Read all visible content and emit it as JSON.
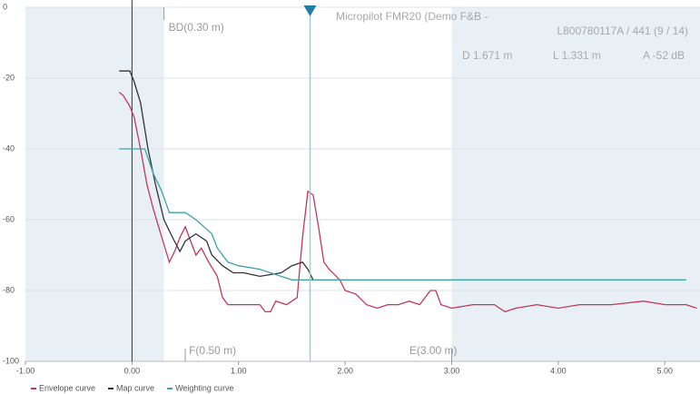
{
  "chart_data": {
    "type": "line",
    "info": {
      "title": "Micropilot FMR20 (Demo F&B -",
      "device": "L800780117A / 441 (9 / 14)",
      "distance": "D 1.671 m",
      "level": "L 1.331 m",
      "amplitude": "A -52 dB"
    },
    "markers": {
      "blocking": {
        "label": "BD(0.30 m)",
        "value": 0.3
      },
      "full": {
        "label": "F(0.50 m)",
        "value": 0.5
      },
      "empty": {
        "label": "E(3.00 m)",
        "value": 3.0
      },
      "cursor": 1.671
    },
    "xlim": [
      -1,
      5.33
    ],
    "ylim": [
      -100,
      0
    ],
    "xticks": [
      {
        "value": -1,
        "label": "-1.00"
      },
      {
        "value": 0,
        "label": "0.00"
      },
      {
        "value": 1,
        "label": "1.00"
      },
      {
        "value": 2,
        "label": "2.00"
      },
      {
        "value": 3,
        "label": "3.00"
      },
      {
        "value": 4,
        "label": "4.00"
      },
      {
        "value": 5,
        "label": "5.00"
      }
    ],
    "yticks": [
      0,
      -20,
      -40,
      -60,
      -80,
      -100
    ],
    "grid": true,
    "series": [
      {
        "name": "Envelope curve",
        "color": "#c0395a",
        "x": [
          -0.12,
          -0.08,
          -0.02,
          0.02,
          0.08,
          0.14,
          0.2,
          0.28,
          0.35,
          0.4,
          0.45,
          0.5,
          0.55,
          0.6,
          0.65,
          0.72,
          0.8,
          0.85,
          0.9,
          1.0,
          1.1,
          1.2,
          1.25,
          1.3,
          1.35,
          1.45,
          1.55,
          1.6,
          1.65,
          1.7,
          1.75,
          1.8,
          1.85,
          1.95,
          2.0,
          2.1,
          2.2,
          2.3,
          2.4,
          2.5,
          2.6,
          2.7,
          2.8,
          2.85,
          2.9,
          3.0,
          3.2,
          3.4,
          3.5,
          3.6,
          3.8,
          4.0,
          4.2,
          4.5,
          4.8,
          5.0,
          5.2,
          5.3
        ],
        "values": [
          -24,
          -25,
          -28,
          -31,
          -40,
          -50,
          -57,
          -65,
          -72,
          -69,
          -65,
          -62,
          -66,
          -70,
          -68,
          -72,
          -76,
          -82,
          -84,
          -84,
          -84,
          -84,
          -86,
          -86,
          -83,
          -84,
          -82,
          -65,
          -52,
          -53,
          -62,
          -72,
          -74,
          -77,
          -80,
          -81,
          -84,
          -85,
          -84,
          -84,
          -83,
          -84,
          -80,
          -80,
          -84,
          -85,
          -84,
          -84,
          -86,
          -85,
          -84,
          -85,
          -84,
          -84,
          -83,
          -84,
          -84,
          -85
        ]
      },
      {
        "name": "Map curve",
        "color": "#333333",
        "x": [
          -0.12,
          -0.02,
          0.02,
          0.08,
          0.15,
          0.22,
          0.3,
          0.38,
          0.45,
          0.5,
          0.6,
          0.7,
          0.75,
          0.85,
          0.95,
          1.05,
          1.2,
          1.4,
          1.5,
          1.6,
          1.65,
          1.7
        ],
        "values": [
          -18,
          -18,
          -21,
          -27,
          -40,
          -50,
          -60,
          -65,
          -69,
          -66,
          -64,
          -66,
          -70,
          -73,
          -75,
          -75,
          -76,
          -75,
          -73,
          -72,
          -74,
          -77
        ]
      },
      {
        "name": "Weighting curve",
        "color": "#3aa3ad",
        "x": [
          -0.12,
          0.12,
          0.2,
          0.28,
          0.35,
          0.5,
          0.6,
          0.75,
          0.8,
          0.9,
          1.0,
          1.2,
          1.4,
          1.5,
          5.2
        ],
        "values": [
          -40,
          -40,
          -47,
          -52,
          -58,
          -58,
          -60,
          -64,
          -68,
          -72,
          -73,
          -74,
          -76,
          -77,
          -77
        ]
      }
    ]
  }
}
